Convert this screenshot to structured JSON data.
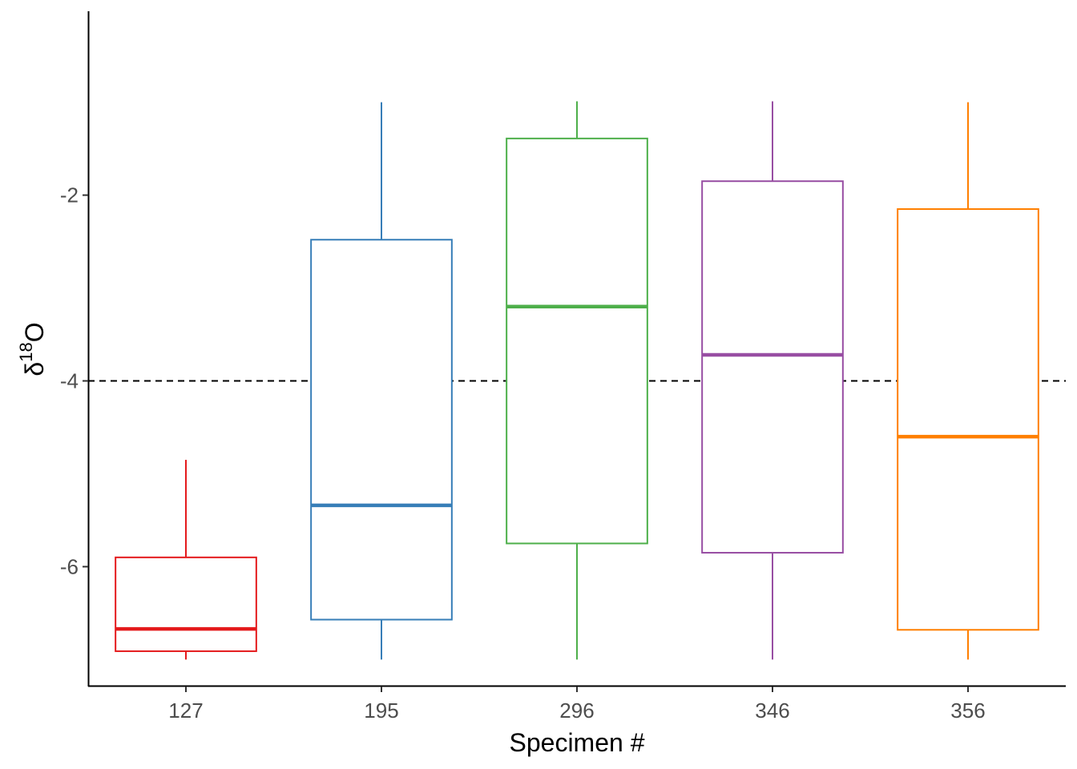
{
  "chart_data": {
    "type": "boxplot",
    "xlabel": "Specimen #",
    "ylabel": {
      "prefix": "δ",
      "superscript": "18",
      "suffix": "O"
    },
    "categories": [
      "127",
      "195",
      "296",
      "346",
      "356"
    ],
    "colors": [
      "#e41a1c",
      "#377eb8",
      "#4daf4a",
      "#984ea3",
      "#ff7f00"
    ],
    "boxes": [
      {
        "category": "127",
        "min": -7.0,
        "q1": -6.91,
        "median": -6.67,
        "q3": -5.9,
        "max": -4.85
      },
      {
        "category": "195",
        "min": -7.0,
        "q1": -6.57,
        "median": -5.34,
        "q3": -2.48,
        "max": -1.0
      },
      {
        "category": "296",
        "min": -7.0,
        "q1": -5.75,
        "median": -3.2,
        "q3": -1.39,
        "max": -0.99
      },
      {
        "category": "346",
        "min": -7.0,
        "q1": -5.85,
        "median": -3.72,
        "q3": -1.85,
        "max": -0.99
      },
      {
        "category": "356",
        "min": -7.0,
        "q1": -6.68,
        "median": -4.6,
        "q3": -2.15,
        "max": -1.0
      }
    ],
    "reference_line": {
      "y": -4,
      "style": "dashed",
      "color": "#000000"
    },
    "yticks": [
      -6,
      -4,
      -2
    ],
    "ytick_labels": [
      "-6",
      "-4",
      "-2"
    ],
    "ylim": [
      -7.29,
      -0.02
    ],
    "grid": false,
    "legend": "none"
  }
}
